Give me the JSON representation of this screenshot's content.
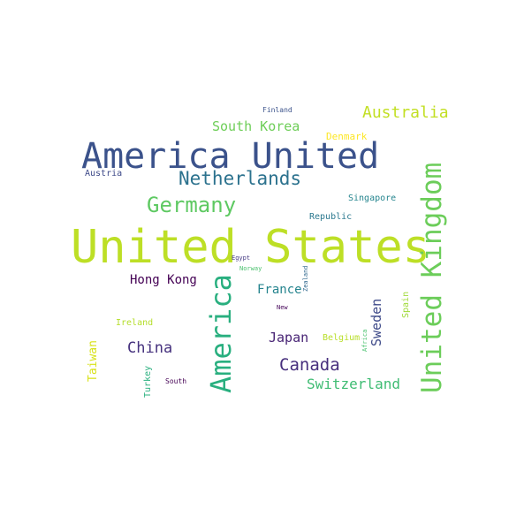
{
  "words": [
    {
      "id": "united-states",
      "text": "United States",
      "color": "#bddf26"
    },
    {
      "id": "america-united",
      "text": "America United",
      "color": "#3b528b"
    },
    {
      "id": "united-kingdom",
      "text": "United Kingdom",
      "color": "#6ccd5a"
    },
    {
      "id": "america",
      "text": "America",
      "color": "#29af7f"
    },
    {
      "id": "netherlands",
      "text": "Netherlands",
      "color": "#2c728e"
    },
    {
      "id": "germany",
      "text": "Germany",
      "color": "#5ec962"
    },
    {
      "id": "australia",
      "text": "Australia",
      "color": "#c2df23"
    },
    {
      "id": "south-korea",
      "text": "South Korea",
      "color": "#6ece58"
    },
    {
      "id": "canada",
      "text": "Canada",
      "color": "#472f7d"
    },
    {
      "id": "switzerland",
      "text": "Switzerland",
      "color": "#3fbc73"
    },
    {
      "id": "china",
      "text": "China",
      "color": "#46327e"
    },
    {
      "id": "hong-kong",
      "text": "Hong Kong",
      "color": "#440154"
    },
    {
      "id": "japan",
      "text": "Japan",
      "color": "#482475"
    },
    {
      "id": "france",
      "text": "France",
      "color": "#25848e"
    },
    {
      "id": "sweden",
      "text": "Sweden",
      "color": "#3e4a89"
    },
    {
      "id": "taiwan",
      "text": "Taiwan",
      "color": "#d8e219"
    },
    {
      "id": "denmark",
      "text": "Denmark",
      "color": "#fde725"
    },
    {
      "id": "singapore",
      "text": "Singapore",
      "color": "#25858e"
    },
    {
      "id": "republic",
      "text": "Republic",
      "color": "#2a788e"
    },
    {
      "id": "austria",
      "text": "Austria",
      "color": "#3e4a89"
    },
    {
      "id": "finland",
      "text": "Finland",
      "color": "#3b528b"
    },
    {
      "id": "ireland",
      "text": "Ireland",
      "color": "#b5de2b"
    },
    {
      "id": "belgium",
      "text": "Belgium",
      "color": "#b8de29"
    },
    {
      "id": "turkey",
      "text": "Turkey",
      "color": "#2ab07f"
    },
    {
      "id": "south",
      "text": "South",
      "color": "#440154"
    },
    {
      "id": "spain",
      "text": "Spain",
      "color": "#a0da39"
    },
    {
      "id": "egypt",
      "text": "Egypt",
      "color": "#443a83"
    },
    {
      "id": "norway",
      "text": "Norway",
      "color": "#4ac16d"
    },
    {
      "id": "zealand",
      "text": "Zealand",
      "color": "#31688e"
    },
    {
      "id": "new",
      "text": "New",
      "color": "#450559"
    },
    {
      "id": "africa",
      "text": "Africa",
      "color": "#48c16e"
    }
  ]
}
